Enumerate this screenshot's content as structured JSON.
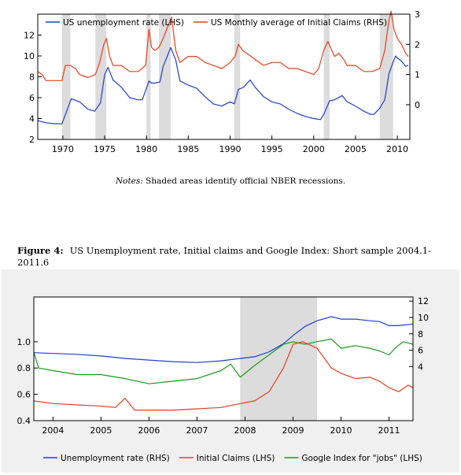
{
  "notes": {
    "label": "Notes:",
    "text": "Shaded areas identify official NBER recessions."
  },
  "figure": {
    "label": "Figure 4:",
    "caption": "US Unemployment rate, Initial claims and Google Index: Short sample 2004.1-2011.6"
  },
  "colors": {
    "blue": "#1f3fd6",
    "red": "#e8401a",
    "green": "#1a9a1a",
    "shade": "#dcdcdc"
  },
  "chart_data": [
    {
      "type": "line",
      "x_ticks": [
        "1970",
        "1975",
        "1980",
        "1985",
        "1990",
        "1995",
        "2000",
        "2005",
        "2010"
      ],
      "xlim": [
        1967,
        2011.5
      ],
      "left_axis": {
        "ticks": [
          "2",
          "4",
          "6",
          "8",
          "10",
          "12"
        ],
        "ylim": [
          2,
          14
        ]
      },
      "right_axis": {
        "ticks": [
          "0",
          "1",
          "2",
          "3"
        ],
        "ylim": [
          -1.15,
          3
        ]
      },
      "legend_position": "top",
      "recessions": [
        [
          1969.9,
          1970.9
        ],
        [
          1973.9,
          1975.2
        ],
        [
          1980.0,
          1980.5
        ],
        [
          1981.5,
          1982.9
        ],
        [
          1990.5,
          1991.2
        ],
        [
          2001.2,
          2001.9
        ],
        [
          2007.9,
          2009.5
        ]
      ],
      "series": [
        {
          "name": "US unemployment rate (LHS)",
          "axis": "left",
          "color": "#1f3fd6",
          "x": [
            1967,
            1968,
            1969,
            1969.9,
            1970.5,
            1971,
            1972,
            1973,
            1973.8,
            1974.5,
            1975.0,
            1975.4,
            1976,
            1977,
            1978,
            1979,
            1979.5,
            1980.3,
            1980.6,
            1981,
            1981.6,
            1982,
            1982.9,
            1983.5,
            1984,
            1985,
            1986,
            1987,
            1988,
            1989,
            1990,
            1990.5,
            1991,
            1991.6,
            1992.4,
            1993,
            1994,
            1995,
            1996,
            1997,
            1998,
            1999,
            2000,
            2000.8,
            2001.2,
            2001.9,
            2002.5,
            2003.4,
            2004,
            2005,
            2006,
            2006.8,
            2007.2,
            2007.9,
            2008.5,
            2009,
            2009.5,
            2009.8,
            2010,
            2010.5,
            2011,
            2011.3
          ],
          "y": [
            3.8,
            3.6,
            3.5,
            3.5,
            4.8,
            5.9,
            5.6,
            4.9,
            4.7,
            5.5,
            8.2,
            8.9,
            7.7,
            7.0,
            6.0,
            5.8,
            5.8,
            7.6,
            7.4,
            7.4,
            7.5,
            9.0,
            10.8,
            9.6,
            7.6,
            7.2,
            6.9,
            6.1,
            5.4,
            5.2,
            5.6,
            5.4,
            6.8,
            7.0,
            7.7,
            7.0,
            6.1,
            5.6,
            5.4,
            4.9,
            4.5,
            4.2,
            4.0,
            3.9,
            4.4,
            5.7,
            5.8,
            6.2,
            5.6,
            5.2,
            4.7,
            4.4,
            4.4,
            5.0,
            5.8,
            8.3,
            9.4,
            10.0,
            9.8,
            9.5,
            9.0,
            9.1
          ]
        },
        {
          "name": "US Monthly average of Initial Claims (RHS)",
          "axis": "right",
          "color": "#e8401a",
          "x": [
            1967,
            1967.5,
            1968,
            1969,
            1969.9,
            1970.3,
            1970.9,
            1971.5,
            1972,
            1973,
            1973.9,
            1974.4,
            1974.9,
            1975.2,
            1975.6,
            1976,
            1977,
            1978,
            1979,
            1979.9,
            1980.3,
            1980.6,
            1981,
            1981.5,
            1982.0,
            1982.7,
            1983.0,
            1983.5,
            1984,
            1985,
            1986,
            1987,
            1988,
            1989,
            1990,
            1990.6,
            1991.0,
            1991.5,
            1992,
            1993,
            1994,
            1995,
            1996,
            1997,
            1998,
            1999,
            2000,
            2000.6,
            2001.2,
            2001.7,
            2002,
            2002.5,
            2003,
            2003.6,
            2004,
            2005,
            2006,
            2007,
            2007.9,
            2008.5,
            2009.0,
            2009.25,
            2009.6,
            2010,
            2010.5,
            2011,
            2011.3
          ],
          "y": [
            1.1,
            1.0,
            0.8,
            0.8,
            0.8,
            1.3,
            1.3,
            1.2,
            1.0,
            0.9,
            1.0,
            1.4,
            2.0,
            2.2,
            1.6,
            1.3,
            1.3,
            1.1,
            1.1,
            1.3,
            2.5,
            1.9,
            1.8,
            1.9,
            2.2,
            2.7,
            2.9,
            1.8,
            1.4,
            1.6,
            1.6,
            1.4,
            1.3,
            1.2,
            1.4,
            1.6,
            2.0,
            1.8,
            1.7,
            1.5,
            1.3,
            1.4,
            1.4,
            1.2,
            1.2,
            1.1,
            1.0,
            1.2,
            1.8,
            2.1,
            1.9,
            1.6,
            1.7,
            1.5,
            1.3,
            1.3,
            1.1,
            1.1,
            1.2,
            1.8,
            2.8,
            3.1,
            2.5,
            2.2,
            2.0,
            1.7,
            1.6
          ]
        }
      ]
    },
    {
      "type": "line",
      "x_ticks": [
        "2004",
        "2005",
        "2006",
        "2007",
        "2008",
        "2009",
        "2010",
        "2011"
      ],
      "xlim": [
        2003.6,
        2011.5
      ],
      "left_axis": {
        "ticks": [
          "0.4",
          "0.6",
          "0.8",
          "1.0"
        ],
        "ylim": [
          0.4,
          1.34
        ]
      },
      "right_axis": {
        "ticks": [
          "4",
          "6",
          "8",
          "10",
          "12"
        ],
        "ylim": [
          -2.6,
          12.5
        ]
      },
      "legend_position": "bottom",
      "recessions": [
        [
          2007.9,
          2009.5
        ]
      ],
      "series": [
        {
          "name": "Unemployment rate (RHS)",
          "axis": "right",
          "color": "#1f3fd6",
          "x": [
            2003.6,
            2004,
            2004.5,
            2005,
            2005.5,
            2006,
            2006.5,
            2007,
            2007.5,
            2007.9,
            2008.2,
            2008.5,
            2008.8,
            2009,
            2009.25,
            2009.5,
            2009.8,
            2010,
            2010.3,
            2010.6,
            2010.8,
            2011,
            2011.2,
            2011.5
          ],
          "y": [
            5.7,
            5.6,
            5.5,
            5.3,
            5.0,
            4.8,
            4.6,
            4.5,
            4.7,
            5.0,
            5.2,
            5.8,
            6.8,
            7.8,
            8.9,
            9.6,
            10.1,
            9.8,
            9.8,
            9.6,
            9.5,
            9.0,
            9.0,
            9.2
          ]
        },
        {
          "name": "Initial Claims (LHS)",
          "axis": "left",
          "color": "#e8401a",
          "x": [
            2003.6,
            2004,
            2004.5,
            2005,
            2005.3,
            2005.5,
            2005.7,
            2006,
            2006.5,
            2007,
            2007.5,
            2007.9,
            2008.2,
            2008.5,
            2008.8,
            2009,
            2009.2,
            2009.5,
            2009.8,
            2010,
            2010.3,
            2010.6,
            2010.8,
            2011,
            2011.2,
            2011.4,
            2011.5
          ],
          "y": [
            0.55,
            0.53,
            0.52,
            0.51,
            0.5,
            0.57,
            0.48,
            0.48,
            0.48,
            0.49,
            0.5,
            0.53,
            0.55,
            0.62,
            0.8,
            0.98,
            1.0,
            0.95,
            0.8,
            0.76,
            0.72,
            0.73,
            0.7,
            0.65,
            0.62,
            0.67,
            0.65
          ]
        },
        {
          "name": "Google Index for \"jobs\" (LHS)",
          "axis": "left",
          "color": "#1a9a1a",
          "x": [
            2003.6,
            2003.7,
            2004,
            2004.5,
            2005,
            2005.5,
            2006,
            2006.5,
            2007,
            2007.5,
            2007.7,
            2007.9,
            2008.2,
            2008.5,
            2008.8,
            2009,
            2009.25,
            2009.5,
            2009.8,
            2010,
            2010.3,
            2010.6,
            2010.8,
            2011,
            2011.15,
            2011.3,
            2011.5
          ],
          "y": [
            0.92,
            0.8,
            0.78,
            0.75,
            0.75,
            0.72,
            0.68,
            0.7,
            0.72,
            0.78,
            0.83,
            0.73,
            0.82,
            0.9,
            0.98,
            1.0,
            0.98,
            1.0,
            1.02,
            0.95,
            0.97,
            0.95,
            0.93,
            0.9,
            0.96,
            1.0,
            0.98
          ]
        }
      ]
    }
  ]
}
